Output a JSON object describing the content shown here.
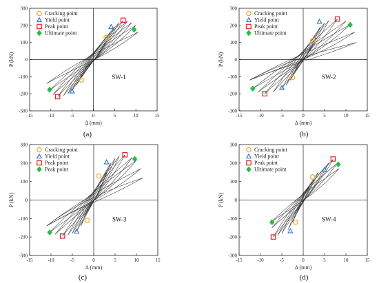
{
  "chart_data": [
    {
      "type": "scatter",
      "specimen": "SW-1",
      "subcaption": "(a)",
      "xlabel": "Δ (mm)",
      "ylabel": "P (kN)",
      "xlim": [
        -15,
        15
      ],
      "ylim": [
        -300,
        300
      ],
      "xticks": [
        -15,
        -10,
        -5,
        0,
        5,
        10,
        15
      ],
      "yticks": [
        -300,
        -200,
        -100,
        0,
        100,
        200,
        300
      ],
      "legend_position": "top-left",
      "series": [
        {
          "name": "Cracking point",
          "marker": "circle",
          "color": "#f5a623",
          "points": [
            [
              3,
              130
            ],
            [
              -2.8,
              -120
            ]
          ]
        },
        {
          "name": "Yield point",
          "marker": "triangle",
          "color": "#2a7fd4",
          "points": [
            [
              4.2,
              192
            ],
            [
              -5,
              -185
            ]
          ]
        },
        {
          "name": "Peak point",
          "marker": "square",
          "color": "#e02020",
          "points": [
            [
              7,
              230
            ],
            [
              -8.4,
              -217
            ]
          ]
        },
        {
          "name": "Ultimate point",
          "marker": "diamond",
          "color": "#22c040",
          "points": [
            [
              9.6,
              175
            ],
            [
              -10.3,
              -176
            ]
          ]
        }
      ]
    },
    {
      "type": "scatter",
      "specimen": "SW-2",
      "subcaption": "(b)",
      "xlabel": "Δ (mm)",
      "ylabel": "P (kN)",
      "xlim": [
        -15,
        15
      ],
      "ylim": [
        -300,
        300
      ],
      "xticks": [
        -15,
        -10,
        -5,
        0,
        5,
        10,
        15
      ],
      "yticks": [
        -300,
        -200,
        -100,
        0,
        100,
        200,
        300
      ],
      "legend_position": "top-left",
      "series": [
        {
          "name": "Cracking point",
          "marker": "circle",
          "color": "#f5a623",
          "points": [
            [
              2.2,
              110
            ],
            [
              -2.5,
              -105
            ]
          ]
        },
        {
          "name": "Yield point",
          "marker": "triangle",
          "color": "#2a7fd4",
          "points": [
            [
              3.8,
              222
            ],
            [
              -5,
              -165
            ]
          ]
        },
        {
          "name": "Peak point",
          "marker": "square",
          "color": "#e02020",
          "points": [
            [
              8,
              237
            ],
            [
              -9,
              -200
            ]
          ]
        },
        {
          "name": "Ultimate point",
          "marker": "diamond",
          "color": "#22c040",
          "points": [
            [
              11,
              203
            ],
            [
              -11.8,
              -170
            ]
          ]
        }
      ]
    },
    {
      "type": "scatter",
      "specimen": "SW-3",
      "subcaption": "(c)",
      "xlabel": "Δ (mm)",
      "ylabel": "P (kN)",
      "xlim": [
        -15,
        15
      ],
      "ylim": [
        -300,
        300
      ],
      "xticks": [
        -15,
        -10,
        -5,
        0,
        5,
        10,
        15
      ],
      "yticks": [
        -300,
        -200,
        -100,
        0,
        100,
        200,
        300
      ],
      "legend_position": "top-left",
      "series": [
        {
          "name": "Cracking point",
          "marker": "circle",
          "color": "#f5a623",
          "points": [
            [
              1.2,
              130
            ],
            [
              -1.5,
              -110
            ]
          ]
        },
        {
          "name": "Yield point",
          "marker": "triangle",
          "color": "#2a7fd4",
          "points": [
            [
              3,
              205
            ],
            [
              -4,
              -170
            ]
          ]
        },
        {
          "name": "Peak point",
          "marker": "square",
          "color": "#e02020",
          "points": [
            [
              7.3,
              245
            ],
            [
              -7.3,
              -195
            ]
          ]
        },
        {
          "name": "Peak point",
          "marker": "diamond",
          "color": "#22c040",
          "points": [
            [
              9.6,
              222
            ],
            [
              -10.3,
              -175
            ]
          ]
        }
      ]
    },
    {
      "type": "scatter",
      "specimen": "SW-4",
      "subcaption": "(d)",
      "xlabel": "Δ (mm)",
      "ylabel": "P (kN)",
      "xlim": [
        -15,
        15
      ],
      "ylim": [
        -300,
        300
      ],
      "xticks": [
        -15,
        -10,
        -5,
        0,
        5,
        10,
        15
      ],
      "yticks": [
        -300,
        -200,
        -100,
        0,
        100,
        200,
        300
      ],
      "legend_position": "top-left",
      "series": [
        {
          "name": "Cracking point",
          "marker": "circle",
          "color": "#f5a623",
          "points": [
            [
              2.2,
              125
            ],
            [
              -1.8,
              -120
            ]
          ]
        },
        {
          "name": "Yield point",
          "marker": "triangle",
          "color": "#2a7fd4",
          "points": [
            [
              5,
              165
            ],
            [
              -3,
              -168
            ]
          ]
        },
        {
          "name": "Peak point",
          "marker": "square",
          "color": "#e02020",
          "points": [
            [
              7,
              222
            ],
            [
              -7,
              -200
            ]
          ]
        },
        {
          "name": "Ultimate point",
          "marker": "diamond",
          "color": "#22c040",
          "points": [
            [
              8.2,
              193
            ],
            [
              -7.3,
              -120
            ]
          ]
        }
      ]
    }
  ]
}
